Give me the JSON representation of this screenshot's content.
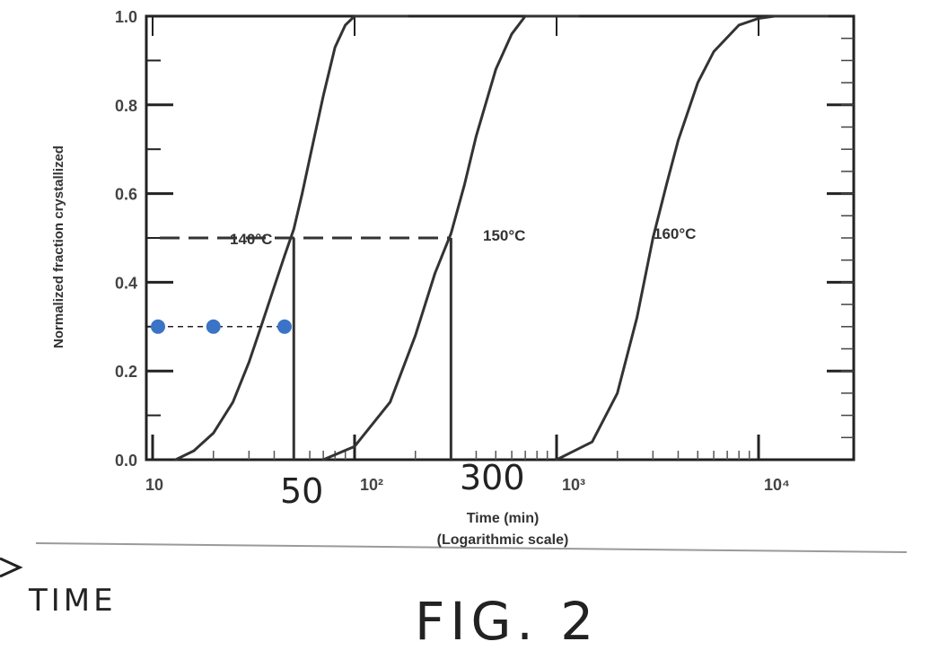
{
  "chart_data": {
    "type": "line",
    "title": "",
    "xlabel": "Time (min)",
    "xlabel2": "(Logarithmic scale)",
    "ylabel": "Normalized fraction crystallized",
    "x_scale": "log",
    "xlim": [
      10,
      16000
    ],
    "ylim": [
      0,
      1.0
    ],
    "y_ticks": [
      "0.0",
      "0.2",
      "0.4",
      "0.6",
      "0.8",
      "1.0"
    ],
    "x_ticks": [
      {
        "value": 10,
        "label": "10"
      },
      {
        "value": 100,
        "label": "10²"
      },
      {
        "value": 1000,
        "label": "10³"
      },
      {
        "value": 10000,
        "label": "10⁴"
      }
    ],
    "series": [
      {
        "name": "140°C",
        "half_time": 50,
        "x": [
          13,
          16,
          20,
          25,
          30,
          35,
          40,
          45,
          50,
          55,
          60,
          70,
          80,
          90,
          100
        ],
        "y": [
          0.0,
          0.02,
          0.06,
          0.13,
          0.22,
          0.31,
          0.39,
          0.46,
          0.52,
          0.6,
          0.68,
          0.82,
          0.93,
          0.98,
          1.0
        ]
      },
      {
        "name": "150°C",
        "half_time": 300,
        "x": [
          70,
          100,
          150,
          200,
          250,
          300,
          350,
          400,
          500,
          600,
          700
        ],
        "y": [
          0.0,
          0.03,
          0.13,
          0.28,
          0.42,
          0.51,
          0.62,
          0.73,
          0.88,
          0.96,
          1.0
        ]
      },
      {
        "name": "160°C",
        "half_time": 3000,
        "x": [
          1000,
          1500,
          2000,
          2500,
          3000,
          3500,
          4000,
          5000,
          6000,
          8000,
          10000,
          12000
        ],
        "y": [
          0.0,
          0.04,
          0.15,
          0.32,
          0.5,
          0.62,
          0.72,
          0.85,
          0.92,
          0.98,
          0.995,
          1.0
        ]
      }
    ],
    "reference_line": {
      "y": 0.5
    },
    "annotation_points": {
      "y": 0.3,
      "x": [
        10,
        20,
        45
      ]
    },
    "handwritten": {
      "label_50": "50",
      "label_300": "300",
      "time_note": "TIME",
      "figure_label": "FIG. 2"
    }
  }
}
